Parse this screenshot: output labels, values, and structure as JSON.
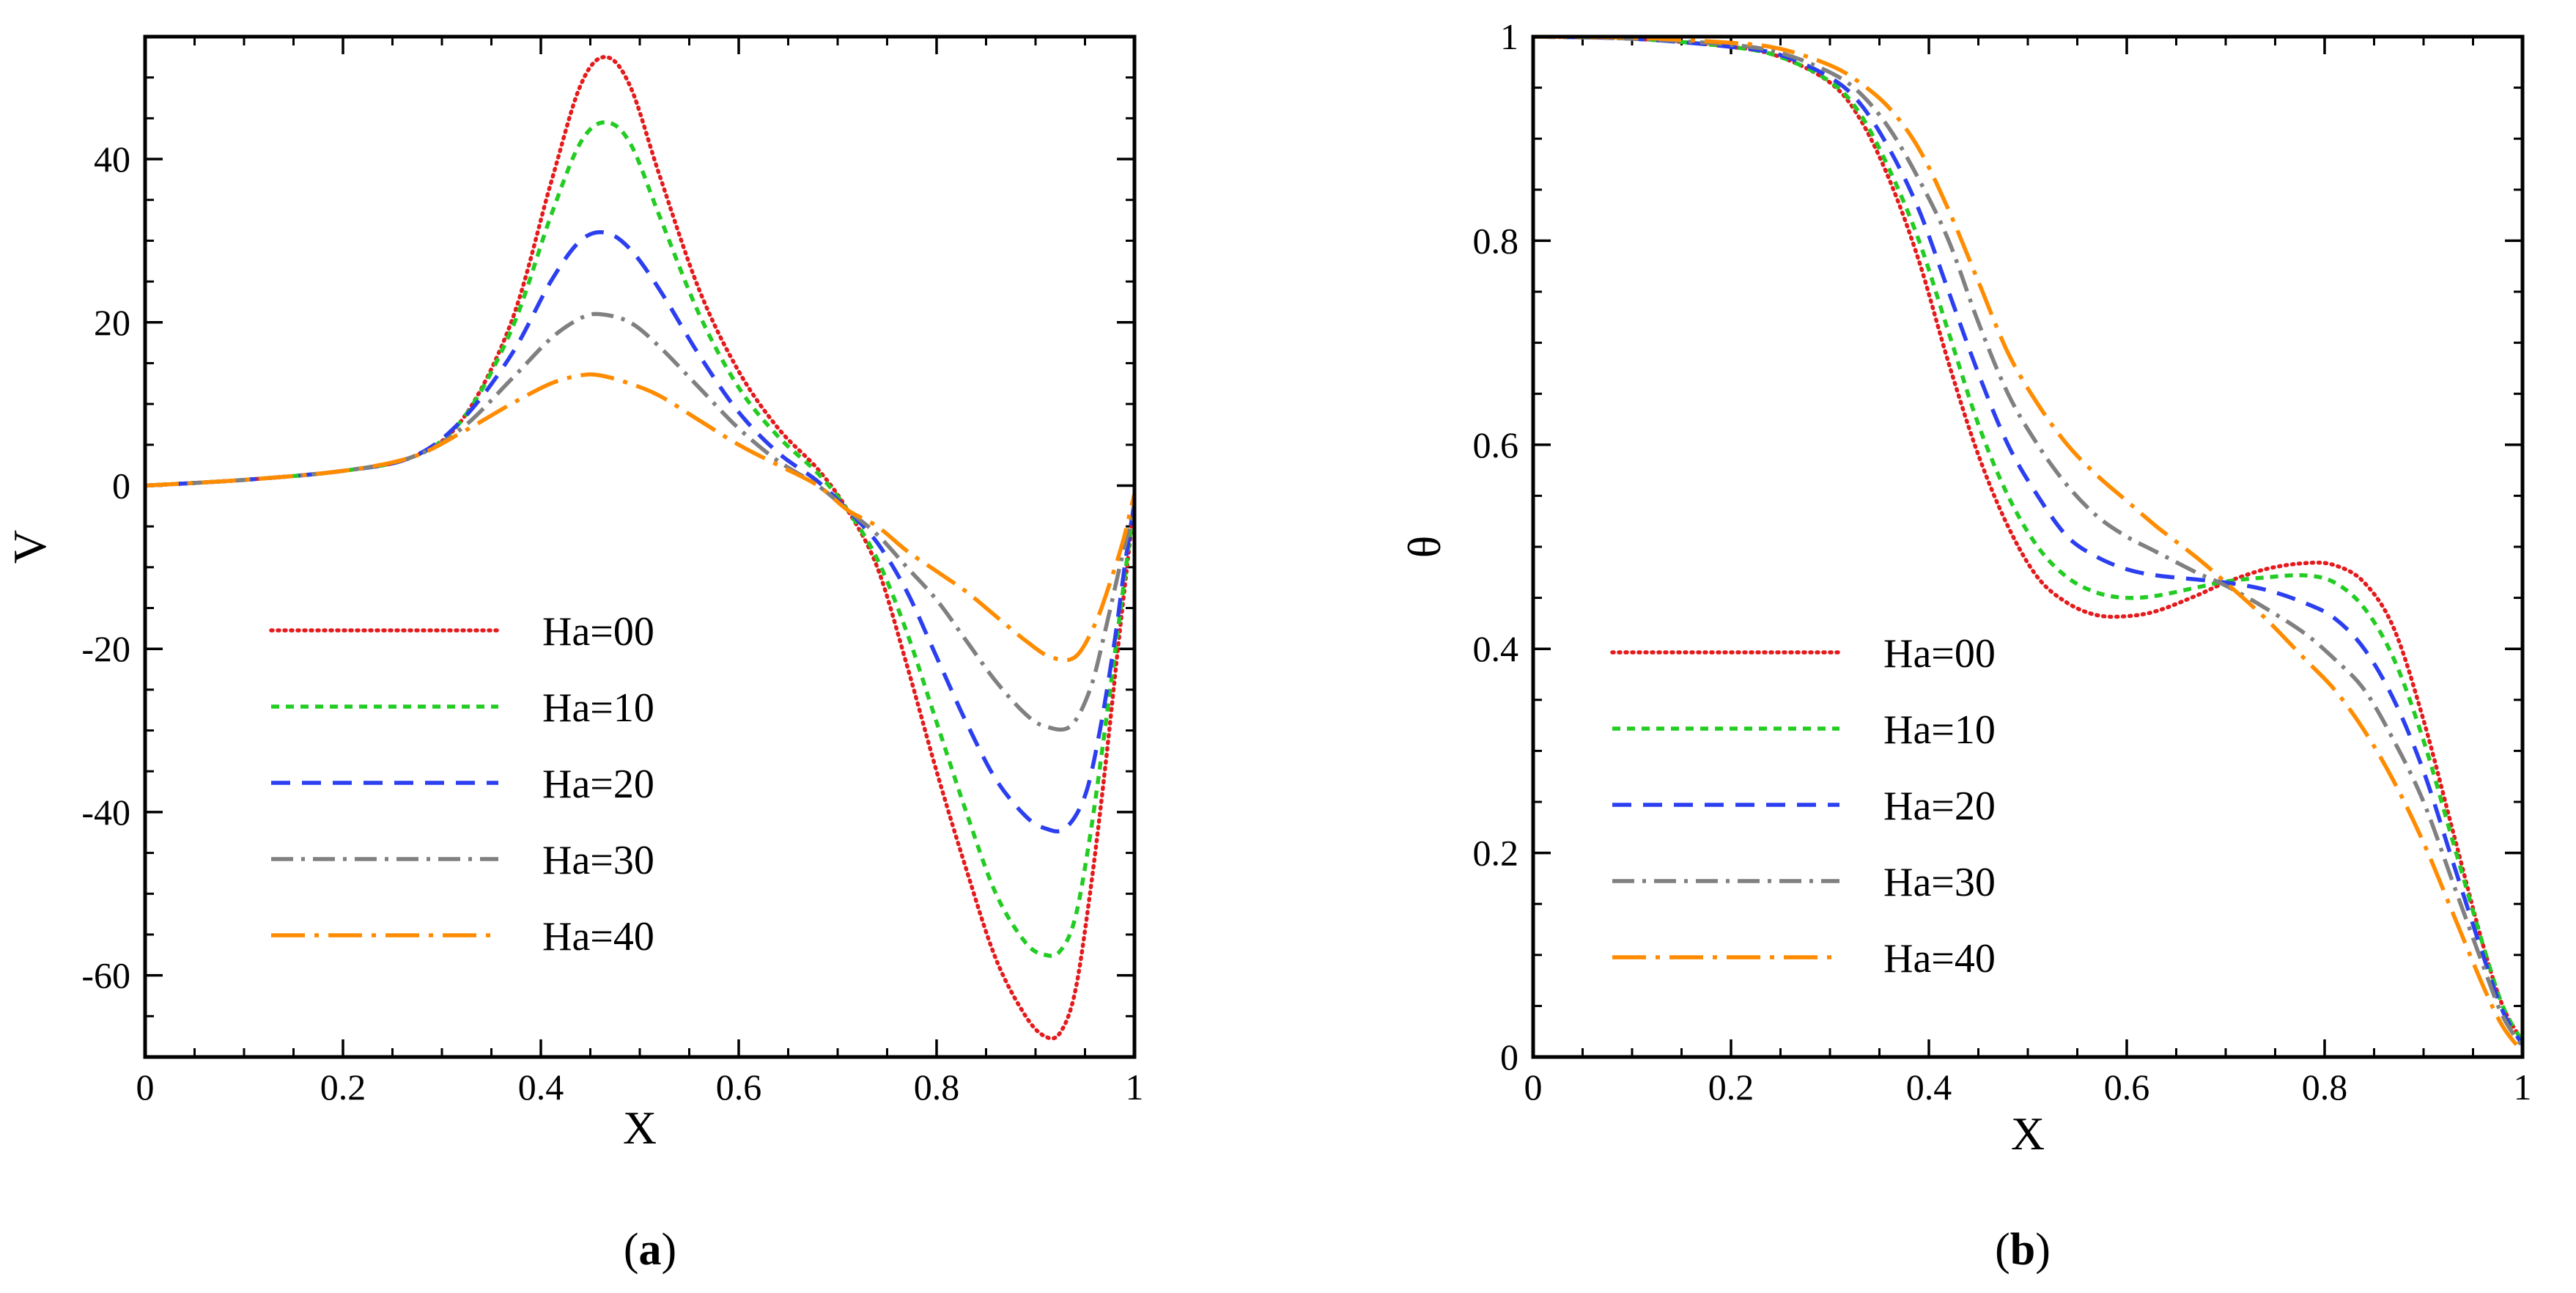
{
  "figure": {
    "captions": [
      {
        "open": "(",
        "letter": "a",
        "close": ")"
      },
      {
        "open": "(",
        "letter": "b",
        "close": ")"
      }
    ]
  },
  "chart_data": [
    {
      "type": "line",
      "title": "",
      "xlabel": "X",
      "ylabel": "V",
      "xlim": [
        0,
        1
      ],
      "ylim": [
        -70,
        55
      ],
      "xticks": [
        0,
        0.2,
        0.4,
        0.6,
        0.8,
        1
      ],
      "xtick_labels": [
        "0",
        "0.2",
        "0.4",
        "0.6",
        "0.8",
        "1"
      ],
      "yticks": [
        -60,
        -40,
        -20,
        0,
        20,
        40
      ],
      "ytick_labels": [
        "-60",
        "-40",
        "-20",
        "0",
        "20",
        "40"
      ],
      "x_minor_step": 0.05,
      "y_minor_step": 5,
      "grid": false,
      "legend_position": "bottom-left",
      "series": [
        {
          "name": "Ha=00",
          "color": "#e41a1c",
          "dash": "dotted",
          "x": [
            0,
            0.1,
            0.2,
            0.27,
            0.32,
            0.37,
            0.41,
            0.44,
            0.465,
            0.49,
            0.52,
            0.56,
            0.6,
            0.64,
            0.68,
            0.71,
            0.74,
            0.77,
            0.8,
            0.83,
            0.86,
            0.89,
            0.91,
            0.925,
            0.94,
            0.955,
            0.97,
            0.985,
            1.0
          ],
          "y": [
            0,
            0.7,
            1.8,
            3.5,
            8,
            20,
            37,
            49,
            52.5,
            49,
            38,
            24,
            14,
            7,
            2,
            -3,
            -10,
            -22,
            -35,
            -47,
            -58,
            -65,
            -67.5,
            -67,
            -62,
            -50,
            -35,
            -18,
            -2
          ]
        },
        {
          "name": "Ha=10",
          "color": "#22cc22",
          "dash": "dashed-short",
          "x": [
            0,
            0.1,
            0.2,
            0.27,
            0.32,
            0.37,
            0.41,
            0.44,
            0.465,
            0.49,
            0.52,
            0.56,
            0.6,
            0.64,
            0.68,
            0.71,
            0.74,
            0.77,
            0.8,
            0.83,
            0.86,
            0.89,
            0.91,
            0.925,
            0.94,
            0.955,
            0.97,
            0.985,
            1.0
          ],
          "y": [
            0,
            0.7,
            1.8,
            3.5,
            8,
            19,
            33,
            42,
            44.5,
            42,
            33,
            21,
            12,
            6,
            1.5,
            -3,
            -9,
            -18,
            -29,
            -40,
            -50,
            -56,
            -57.5,
            -57,
            -53,
            -43,
            -30,
            -16,
            -2
          ]
        },
        {
          "name": "Ha=20",
          "color": "#2b3ff0",
          "dash": "dashed",
          "x": [
            0,
            0.1,
            0.2,
            0.27,
            0.32,
            0.37,
            0.41,
            0.44,
            0.465,
            0.49,
            0.52,
            0.56,
            0.6,
            0.64,
            0.68,
            0.71,
            0.74,
            0.77,
            0.8,
            0.83,
            0.86,
            0.89,
            0.91,
            0.93,
            0.95,
            0.965,
            0.98,
            0.99,
            1.0
          ],
          "y": [
            0,
            0.7,
            1.8,
            3.5,
            8,
            16,
            25,
            30,
            31,
            29,
            24,
            16,
            9,
            4,
            0.5,
            -3,
            -7,
            -13,
            -21,
            -29,
            -36,
            -40.5,
            -42,
            -42,
            -38,
            -30,
            -19,
            -10,
            -2
          ]
        },
        {
          "name": "Ha=30",
          "color": "#808080",
          "dash": "dashdot",
          "x": [
            0,
            0.1,
            0.2,
            0.27,
            0.32,
            0.37,
            0.41,
            0.44,
            0.46,
            0.49,
            0.52,
            0.56,
            0.6,
            0.64,
            0.68,
            0.71,
            0.74,
            0.77,
            0.8,
            0.83,
            0.86,
            0.89,
            0.91,
            0.935,
            0.955,
            0.97,
            0.985,
            0.995,
            1.0
          ],
          "y": [
            0,
            0.7,
            1.8,
            3.5,
            7,
            13,
            18,
            20.5,
            21,
            20,
            17,
            12,
            7,
            3,
            0,
            -3,
            -6,
            -10,
            -14,
            -19,
            -24,
            -28,
            -29.5,
            -29.5,
            -25,
            -18,
            -10,
            -5,
            -2
          ]
        },
        {
          "name": "Ha=40",
          "color": "#ff8c00",
          "dash": "longdashdot",
          "x": [
            0,
            0.1,
            0.2,
            0.27,
            0.32,
            0.37,
            0.41,
            0.44,
            0.46,
            0.49,
            0.52,
            0.56,
            0.6,
            0.64,
            0.68,
            0.71,
            0.74,
            0.77,
            0.8,
            0.83,
            0.86,
            0.89,
            0.915,
            0.94,
            0.96,
            0.975,
            0.988,
            0.996,
            1.0
          ],
          "y": [
            0,
            0.7,
            1.8,
            3.5,
            6.5,
            10,
            12.5,
            13.5,
            13.5,
            12.5,
            11,
            8,
            5,
            2.5,
            0,
            -3,
            -5,
            -8,
            -10.5,
            -13,
            -16,
            -19,
            -21,
            -21,
            -17,
            -12,
            -7,
            -3,
            -1
          ]
        }
      ]
    },
    {
      "type": "line",
      "title": "",
      "xlabel": "X",
      "ylabel": "θ",
      "xlim": [
        0,
        1
      ],
      "ylim": [
        0,
        1
      ],
      "xticks": [
        0,
        0.2,
        0.4,
        0.6,
        0.8,
        1
      ],
      "xtick_labels": [
        "0",
        "0.2",
        "0.4",
        "0.6",
        "0.8",
        "1"
      ],
      "yticks": [
        0,
        0.2,
        0.4,
        0.6,
        0.8,
        1
      ],
      "ytick_labels": [
        "0",
        "0.2",
        "0.4",
        "0.6",
        "0.8",
        "1"
      ],
      "x_minor_step": 0.05,
      "y_minor_step": 0.05,
      "grid": false,
      "legend_position": "bottom-left",
      "series": [
        {
          "name": "Ha=00",
          "color": "#e41a1c",
          "dash": "dotted",
          "x": [
            0,
            0.1,
            0.2,
            0.25,
            0.3,
            0.33,
            0.36,
            0.39,
            0.42,
            0.45,
            0.48,
            0.51,
            0.54,
            0.57,
            0.6,
            0.63,
            0.67,
            0.7,
            0.74,
            0.78,
            0.81,
            0.84,
            0.87,
            0.9,
            0.93,
            0.96,
            0.98,
            1.0
          ],
          "y": [
            1,
            0.998,
            0.99,
            0.98,
            0.955,
            0.92,
            0.86,
            0.78,
            0.68,
            0.59,
            0.52,
            0.47,
            0.445,
            0.433,
            0.432,
            0.437,
            0.452,
            0.465,
            0.478,
            0.484,
            0.482,
            0.465,
            0.42,
            0.33,
            0.22,
            0.11,
            0.05,
            0.015
          ]
        },
        {
          "name": "Ha=10",
          "color": "#22cc22",
          "dash": "dashed-short",
          "x": [
            0,
            0.1,
            0.2,
            0.25,
            0.3,
            0.33,
            0.36,
            0.39,
            0.42,
            0.45,
            0.48,
            0.51,
            0.54,
            0.57,
            0.6,
            0.63,
            0.67,
            0.7,
            0.74,
            0.78,
            0.81,
            0.84,
            0.87,
            0.9,
            0.93,
            0.96,
            0.98,
            1.0
          ],
          "y": [
            1,
            0.998,
            0.99,
            0.98,
            0.956,
            0.925,
            0.87,
            0.8,
            0.71,
            0.62,
            0.55,
            0.5,
            0.47,
            0.455,
            0.45,
            0.452,
            0.46,
            0.466,
            0.47,
            0.472,
            0.465,
            0.44,
            0.39,
            0.31,
            0.21,
            0.11,
            0.05,
            0.015
          ]
        },
        {
          "name": "Ha=20",
          "color": "#2b3ff0",
          "dash": "dashed",
          "x": [
            0,
            0.1,
            0.2,
            0.25,
            0.3,
            0.33,
            0.36,
            0.39,
            0.42,
            0.45,
            0.48,
            0.51,
            0.54,
            0.57,
            0.6,
            0.63,
            0.67,
            0.7,
            0.74,
            0.78,
            0.81,
            0.84,
            0.87,
            0.9,
            0.93,
            0.96,
            0.98,
            1.0
          ],
          "y": [
            1,
            0.998,
            0.99,
            0.982,
            0.96,
            0.935,
            0.89,
            0.83,
            0.75,
            0.67,
            0.6,
            0.55,
            0.51,
            0.49,
            0.478,
            0.472,
            0.468,
            0.465,
            0.458,
            0.445,
            0.43,
            0.4,
            0.35,
            0.28,
            0.19,
            0.1,
            0.045,
            0.012
          ]
        },
        {
          "name": "Ha=30",
          "color": "#808080",
          "dash": "dashdot",
          "x": [
            0,
            0.1,
            0.2,
            0.25,
            0.3,
            0.33,
            0.36,
            0.39,
            0.42,
            0.45,
            0.48,
            0.51,
            0.54,
            0.57,
            0.6,
            0.63,
            0.67,
            0.7,
            0.74,
            0.78,
            0.81,
            0.84,
            0.87,
            0.9,
            0.93,
            0.96,
            0.98,
            1.0
          ],
          "y": [
            1,
            0.998,
            0.992,
            0.984,
            0.965,
            0.945,
            0.91,
            0.86,
            0.8,
            0.72,
            0.65,
            0.6,
            0.56,
            0.53,
            0.51,
            0.495,
            0.475,
            0.462,
            0.44,
            0.415,
            0.39,
            0.36,
            0.31,
            0.25,
            0.17,
            0.09,
            0.04,
            0.01
          ]
        },
        {
          "name": "Ha=40",
          "color": "#ff8c00",
          "dash": "longdashdot",
          "x": [
            0,
            0.1,
            0.2,
            0.25,
            0.3,
            0.33,
            0.36,
            0.39,
            0.42,
            0.45,
            0.48,
            0.51,
            0.54,
            0.57,
            0.6,
            0.63,
            0.67,
            0.7,
            0.74,
            0.78,
            0.81,
            0.84,
            0.87,
            0.9,
            0.93,
            0.96,
            0.98,
            1.0
          ],
          "y": [
            1,
            0.999,
            0.994,
            0.988,
            0.972,
            0.955,
            0.93,
            0.89,
            0.83,
            0.76,
            0.69,
            0.64,
            0.6,
            0.57,
            0.545,
            0.52,
            0.49,
            0.465,
            0.43,
            0.39,
            0.36,
            0.32,
            0.27,
            0.21,
            0.14,
            0.07,
            0.03,
            0.005
          ]
        }
      ]
    }
  ]
}
